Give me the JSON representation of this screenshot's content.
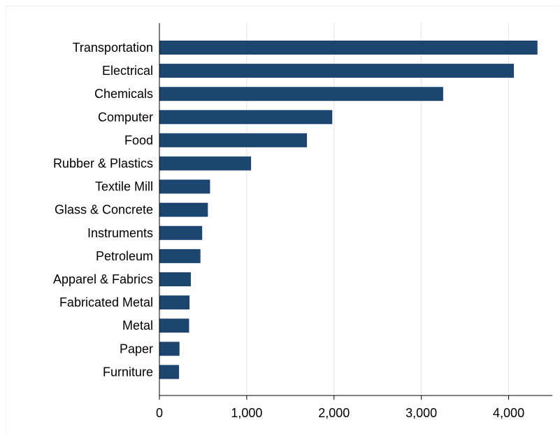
{
  "chart_data": {
    "type": "bar",
    "orientation": "horizontal",
    "categories": [
      "Transportation",
      "Electrical",
      "Chemicals",
      "Computer",
      "Food",
      "Rubber & Plastics",
      "Textile Mill",
      "Glass & Concrete",
      "Instruments",
      "Petroleum",
      "Apparel & Fabrics",
      "Fabricated Metal",
      "Metal",
      "Paper",
      "Furniture"
    ],
    "values": [
      4330,
      4060,
      3250,
      1980,
      1690,
      1050,
      580,
      555,
      490,
      470,
      360,
      345,
      340,
      230,
      225
    ],
    "xlim": [
      0,
      4500
    ],
    "xticks": [
      0,
      1000,
      2000,
      3000,
      4000
    ],
    "xtick_labels": [
      "0",
      "1,000",
      "2,000",
      "3,000",
      "4,000"
    ],
    "title": "",
    "xlabel": "",
    "ylabel": "",
    "grid": "vertical",
    "legend": "none",
    "colors": {
      "bar": "#1c4670",
      "grid": "#e6e6e6",
      "axis": "#000000",
      "background": "#ffffff"
    }
  }
}
